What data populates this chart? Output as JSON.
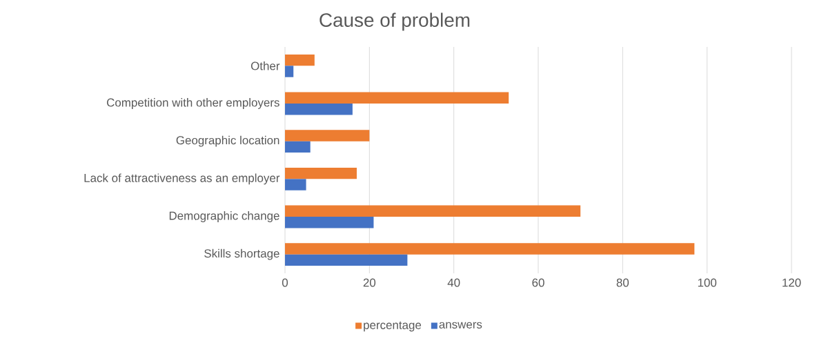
{
  "chart_data": {
    "type": "bar",
    "orientation": "horizontal",
    "title": "Cause of problem",
    "categories": [
      "Other",
      "Competition with other employers",
      "Geographic location",
      "Lack of attractiveness as an employer",
      "Demographic change",
      "Skills shortage"
    ],
    "series": [
      {
        "name": "percentage",
        "color": "#ed7d31",
        "values": [
          7,
          53,
          20,
          17,
          70,
          97
        ]
      },
      {
        "name": "answers",
        "color": "#4472c4",
        "values": [
          2,
          16,
          6,
          5,
          21,
          29
        ]
      }
    ],
    "xlim": [
      0,
      120
    ],
    "xticks": [
      0,
      20,
      40,
      60,
      80,
      100,
      120
    ],
    "grid": "x",
    "legend": "bottom"
  }
}
